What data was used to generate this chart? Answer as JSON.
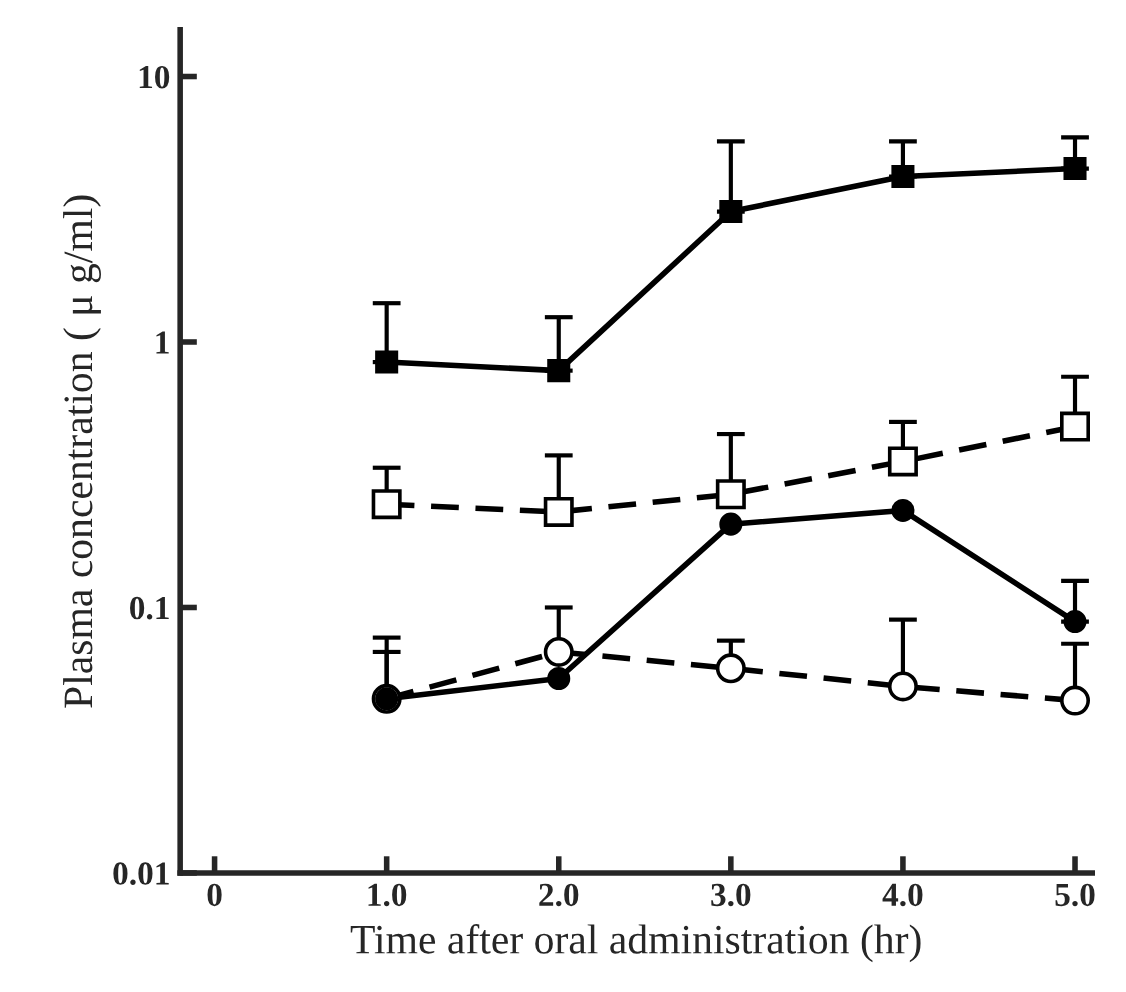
{
  "chart_data": {
    "type": "line",
    "xlabel": "Time after oral administration (hr)",
    "ylabel": "Plasma concentration ( μ g/ml)",
    "log": "y",
    "xlim": [
      -0.2,
      5.1
    ],
    "ylim": [
      0.01,
      15
    ],
    "xticks": [
      0,
      {
        "value": 1,
        "label": "1.0"
      },
      {
        "value": 2,
        "label": "2.0"
      },
      {
        "value": 3,
        "label": "3.0"
      },
      {
        "value": 4,
        "label": "4.0"
      },
      {
        "value": 5,
        "label": "5.0"
      }
    ],
    "yticks": [
      0.01,
      0.1,
      1,
      10
    ],
    "grid": false,
    "legend": false,
    "x": [
      1,
      2,
      3,
      4,
      5
    ],
    "series": [
      {
        "color": "#000000",
        "marker": "square",
        "line_style": "solid",
        "values": [
          0.84,
          0.78,
          3.1,
          4.2,
          4.5
        ],
        "errors": [
          [
            0.84,
            1.4
          ],
          [
            0.78,
            1.24
          ],
          [
            3.1,
            5.7
          ],
          [
            4.2,
            5.7
          ],
          [
            4.5,
            5.9
          ]
        ]
      },
      {
        "color": "#000000",
        "marker": "square",
        "line_style": "dashed",
        "values": [
          0.245,
          0.229,
          0.267,
          0.355,
          0.48
        ],
        "errors": [
          [
            0.245,
            0.336
          ],
          [
            0.229,
            0.374
          ],
          [
            0.267,
            0.45
          ],
          [
            0.355,
            0.5
          ],
          [
            0.48,
            0.74
          ]
        ]
      },
      {
        "color": "#000000",
        "marker": "circle",
        "line_style": "solid",
        "values": [
          0.0453,
          0.054,
          0.206,
          0.232,
          0.0885
        ],
        "errors": [
          [
            0.0453,
            0.077
          ],
          null,
          null,
          null,
          [
            0.0885,
            0.126
          ]
        ]
      },
      {
        "color": "#000000",
        "marker": "circle",
        "line_style": "dashed",
        "values": [
          0.0453,
          0.068,
          0.059,
          0.0504,
          0.0446
        ],
        "errors": [
          [
            0.0453,
            0.068
          ],
          [
            0.068,
            0.1
          ],
          [
            0.059,
            0.075
          ],
          [
            0.0504,
            0.09
          ],
          [
            0.0446,
            0.073
          ]
        ]
      }
    ]
  }
}
